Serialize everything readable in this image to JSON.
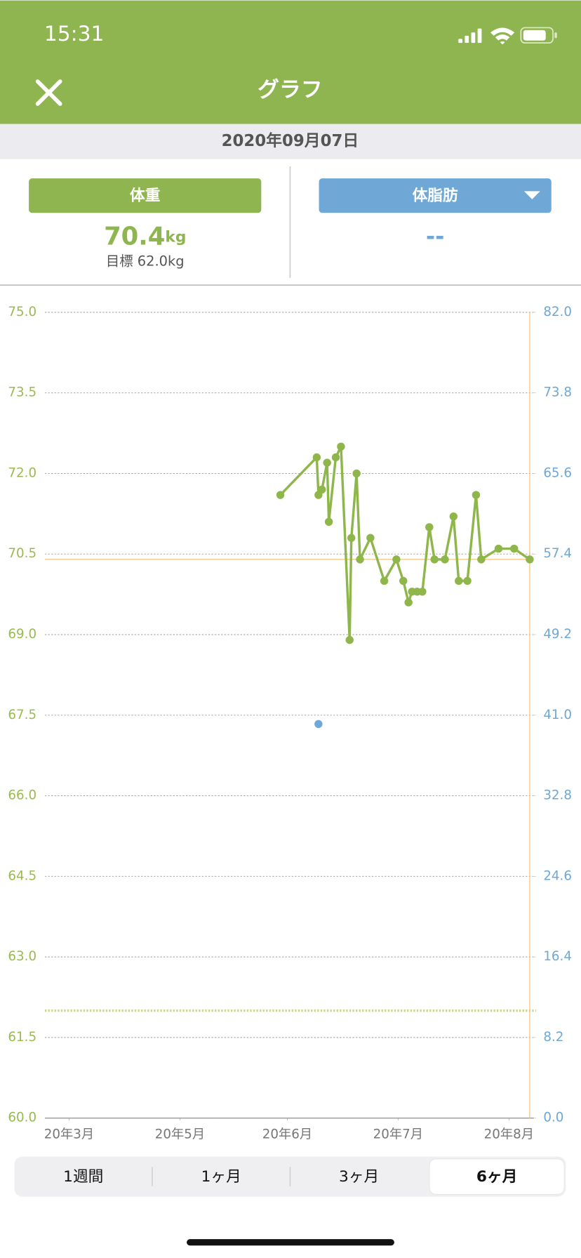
{
  "status_bar": {
    "time": "15:31"
  },
  "header": {
    "title": "グラフ"
  },
  "date": "2020年09月07日",
  "weight": {
    "label": "体重",
    "value": 70.4,
    "unit": "kg",
    "goal_text": "目標 62.0kg"
  },
  "body_fat": {
    "label": "体脂肪",
    "value": "--"
  },
  "tabs": {
    "items": [
      "1週間",
      "1ヶ月",
      "3ヶ月",
      "6ヶ月"
    ],
    "selected": 3
  },
  "chart_data": {
    "type": "line",
    "xlim": [
      0,
      140
    ],
    "xticks": [
      {
        "value": 7,
        "label": "20年3月"
      },
      {
        "value": 39,
        "label": "20年5月"
      },
      {
        "value": 70,
        "label": "20年6月"
      },
      {
        "value": 102,
        "label": "20年7月"
      },
      {
        "value": 134,
        "label": "20年8月"
      }
    ],
    "ylim": [
      60,
      75
    ],
    "yticks": [
      {
        "value": 60,
        "label": "60.0"
      },
      61.5,
      {
        "value": 63,
        "label": "63.0"
      },
      64.5,
      {
        "value": 66,
        "label": "66.0"
      },
      67.5,
      {
        "value": 69,
        "label": "69.0"
      },
      70.5,
      {
        "value": 72,
        "label": "72.0"
      },
      73.5,
      {
        "value": 75,
        "label": "75.0"
      }
    ],
    "y2lim": [
      0,
      82
    ],
    "y2ticks": [
      {
        "value": 0,
        "label": "0.0"
      },
      8.2,
      16.4,
      24.6,
      32.8,
      {
        "value": 41,
        "label": "41.0"
      },
      49.2,
      57.4,
      65.6,
      73.8,
      {
        "value": 82,
        "label": "82.0"
      }
    ],
    "grid": true,
    "goal_line": {
      "value": 62.0,
      "color": "#c9d98a"
    },
    "current_line": {
      "value": 70.4,
      "color": "#f5c88a"
    },
    "today_line": {
      "x": 140,
      "color": "#f5c88a"
    },
    "y_color": "#9bbb4f",
    "y2_color": "#6fa8d6",
    "series": [
      {
        "color": "#8fb64a",
        "x": [
          68,
          78.5,
          79,
          80,
          81.5,
          82,
          84,
          85.5,
          88,
          88.5,
          90,
          91,
          94,
          98,
          101.5,
          103.5,
          105,
          106,
          107.5,
          109,
          111,
          112.5,
          115.5,
          118,
          119.5,
          122,
          124.5,
          126,
          131,
          135.5,
          140
        ],
        "values": [
          71.6,
          72.3,
          71.6,
          71.7,
          72.2,
          71.1,
          72.3,
          72.5,
          68.9,
          70.8,
          72.0,
          70.4,
          70.8,
          70.0,
          70.4,
          70.0,
          69.6,
          69.8,
          69.8,
          69.8,
          71.0,
          70.4,
          70.4,
          71.2,
          70.0,
          70.0,
          71.6,
          70.4,
          70.6,
          70.6,
          70.4
        ]
      },
      {
        "color": "#6fa8d6",
        "axis": "y2",
        "x": [
          79
        ],
        "values": [
          40.1
        ]
      }
    ]
  }
}
